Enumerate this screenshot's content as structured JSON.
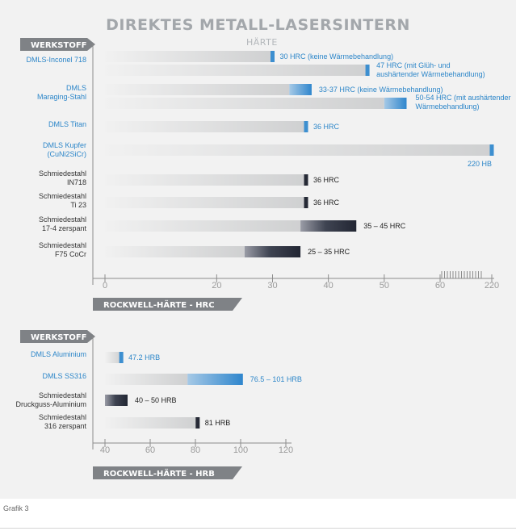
{
  "header": {
    "title": "DIREKTES METALL-LASERSINTERN",
    "subtitle": "HÄRTE",
    "caption": "Grafik 3"
  },
  "colors": {
    "blue": "#3d8fd0",
    "blue_text": "#2c86c9",
    "dark": "#262a36",
    "grey_tag": "#7f8286"
  },
  "chart_data": [
    {
      "type": "bar",
      "variant": "range",
      "category_header": "WERKSTOFF",
      "xlabel": "ROCKWELL-HÄRTE - HRC",
      "xlim": [
        0,
        60
      ],
      "xticks": [
        "0",
        "20",
        "30",
        "40",
        "50",
        "60",
        "220"
      ],
      "axis_break": [
        60,
        220
      ],
      "rows": [
        {
          "category": [
            "DMLS-Inconel 718"
          ],
          "color": "blue",
          "bars": [
            {
              "start": 30,
              "end": 30,
              "label": [
                "30 HRC (keine Wärmebehandlung)"
              ]
            },
            {
              "start": 47,
              "end": 47,
              "label": [
                "47 HRC (mit Glüh- und",
                "aushärtender Wärmebehandlung)"
              ]
            }
          ]
        },
        {
          "category": [
            "DMLS",
            "Maraging-Stahl"
          ],
          "color": "blue",
          "bars": [
            {
              "start": 33,
              "end": 37,
              "label": [
                "33-37 HRC (keine Wärmebehandlung)"
              ]
            },
            {
              "start": 50,
              "end": 54,
              "label": [
                "50-54 HRC (mit aushärtender",
                "Wärmebehandlung)"
              ]
            }
          ]
        },
        {
          "category": [
            "DMLS Titan"
          ],
          "color": "blue",
          "bars": [
            {
              "start": 36,
              "end": 36,
              "label": [
                "36 HRC"
              ]
            }
          ]
        },
        {
          "category": [
            "DMLS Kupfer",
            "(CuNi2SiCr)"
          ],
          "color": "blue",
          "bars": [
            {
              "start": 220,
              "end": 220,
              "label": [
                "220 HB"
              ]
            }
          ]
        },
        {
          "category": [
            "Schmiedestahl",
            "IN718"
          ],
          "color": "dark",
          "bars": [
            {
              "start": 36,
              "end": 36,
              "label": [
                "36 HRC"
              ]
            }
          ]
        },
        {
          "category": [
            "Schmiedestahl",
            "Ti 23"
          ],
          "color": "dark",
          "bars": [
            {
              "start": 36,
              "end": 36,
              "label": [
                "36 HRC"
              ]
            }
          ]
        },
        {
          "category": [
            "Schmiedestahl",
            "17-4 zerspant"
          ],
          "color": "dark",
          "bars": [
            {
              "start": 35,
              "end": 45,
              "label": [
                "35 – 45 HRC"
              ]
            }
          ]
        },
        {
          "category": [
            "Schmiedestahl",
            "F75 CoCr"
          ],
          "color": "dark",
          "bars": [
            {
              "start": 25,
              "end": 35,
              "label": [
                "25 – 35 HRC"
              ]
            }
          ]
        }
      ]
    },
    {
      "type": "bar",
      "variant": "range",
      "category_header": "WERKSTOFF",
      "xlabel": "ROCKWELL-HÄRTE - HRB",
      "xlim": [
        40,
        120
      ],
      "xticks": [
        "40",
        "60",
        "80",
        "100",
        "120"
      ],
      "rows": [
        {
          "category": [
            "DMLS Aluminium"
          ],
          "color": "blue",
          "bars": [
            {
              "start": 47.2,
              "end": 47.2,
              "label": [
                "47.2 HRB"
              ]
            }
          ]
        },
        {
          "category": [
            "DMLS SS316"
          ],
          "color": "blue",
          "bars": [
            {
              "start": 76.5,
              "end": 101,
              "label": [
                "76.5 – 101 HRB"
              ]
            }
          ]
        },
        {
          "category": [
            "Schmiedestahl",
            "Druckguss-Aluminium"
          ],
          "color": "dark",
          "bars": [
            {
              "start": 40,
              "end": 50,
              "label": [
                "40 – 50 HRB"
              ]
            }
          ]
        },
        {
          "category": [
            "Schmiedestahl",
            "316 zerspant"
          ],
          "color": "dark",
          "bars": [
            {
              "start": 81,
              "end": 81,
              "label": [
                "81 HRB"
              ]
            }
          ]
        }
      ]
    }
  ]
}
